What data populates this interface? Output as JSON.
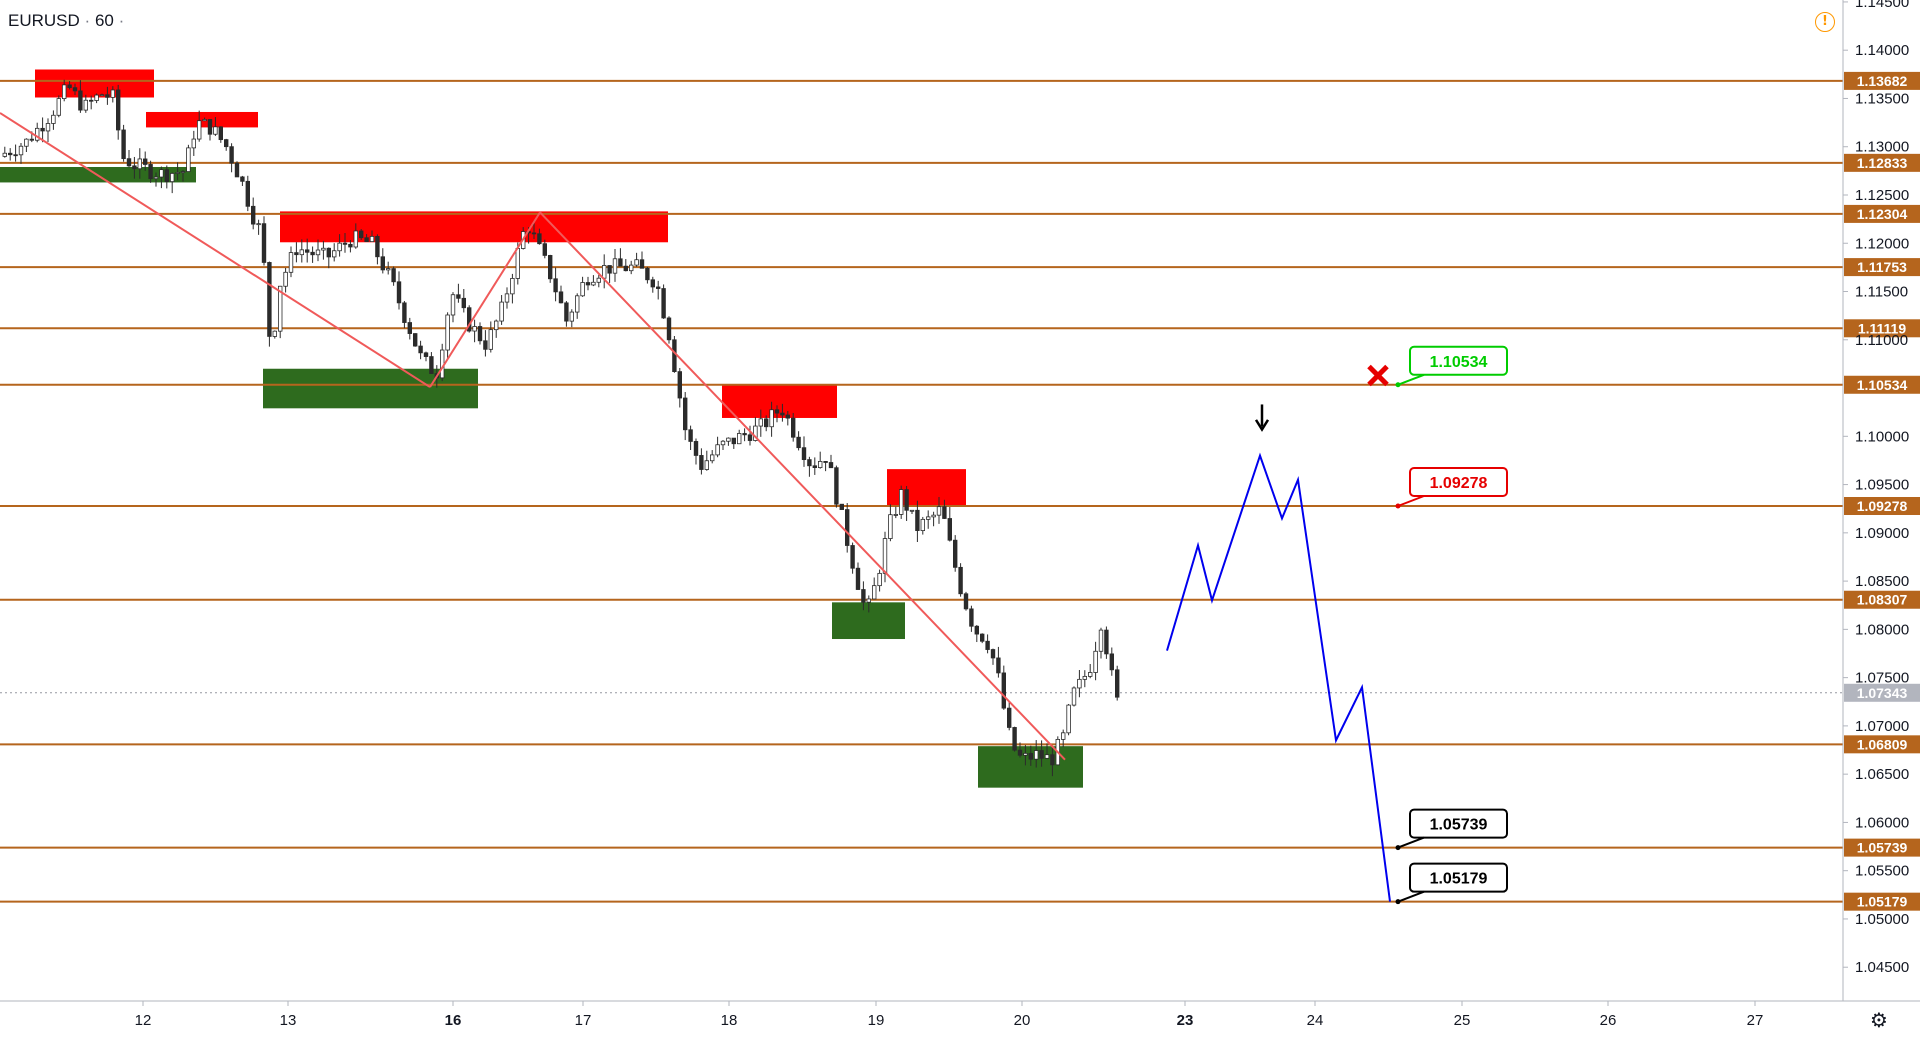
{
  "symbol": {
    "name": "EURUSD",
    "interval": "60"
  },
  "colors": {
    "level": "#b5651d",
    "supply": "#ff0000",
    "demand": "#2e6b1e",
    "trend": "#f05a5a",
    "projection": "#0000ee",
    "candle_up": "#ffffff",
    "candle_down": "#2b2b2b",
    "current_price_tag": "#b2b5be",
    "callout_green": "#00cc00",
    "callout_red": "#e60000",
    "callout_black": "#000000"
  },
  "icons": {
    "warning": "warning-icon",
    "settings": "gear-icon",
    "invalidation": "cross-icon",
    "entry": "arrow-down-icon"
  },
  "chart_data": {
    "type": "candlestick",
    "y_axis": {
      "range": [
        1.0415,
        1.1452
      ],
      "ticks": [
        "1.14500",
        "1.14000",
        "1.13500",
        "1.13000",
        "1.12500",
        "1.12000",
        "1.11500",
        "1.11000",
        "1.10000",
        "1.09500",
        "1.09000",
        "1.08500",
        "1.08000",
        "1.07500",
        "1.07000",
        "1.06500",
        "1.06000",
        "1.05500",
        "1.05000",
        "1.04500"
      ]
    },
    "x_axis": {
      "ticks": [
        "12",
        "13",
        "16",
        "17",
        "18",
        "19",
        "20",
        "23",
        "24",
        "25",
        "26",
        "27"
      ],
      "bold_ticks": [
        "16",
        "23"
      ]
    },
    "horizontal_levels": [
      {
        "label": "1.13682"
      },
      {
        "label": "1.12833"
      },
      {
        "label": "1.12304"
      },
      {
        "label": "1.11753"
      },
      {
        "label": "1.11119"
      },
      {
        "label": "1.10534"
      },
      {
        "label": "1.09278"
      },
      {
        "label": "1.08307"
      },
      {
        "label": "1.06809"
      },
      {
        "label": "1.05739"
      },
      {
        "label": "1.05179"
      }
    ],
    "current_price": {
      "label": "1.07343"
    },
    "callouts": [
      {
        "label": "1.10534",
        "style": "green"
      },
      {
        "label": "1.09278",
        "style": "red"
      },
      {
        "label": "1.05739",
        "style": "black"
      },
      {
        "label": "1.05179",
        "style": "black"
      }
    ]
  }
}
